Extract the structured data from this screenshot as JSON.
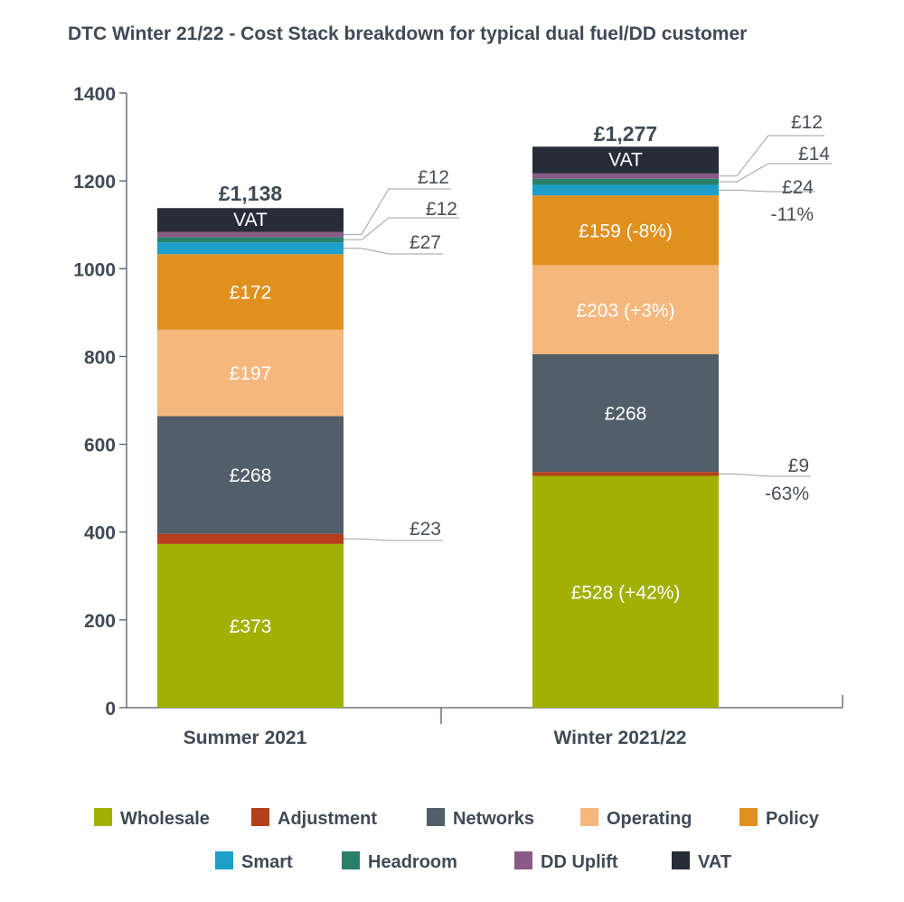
{
  "chart_data": {
    "type": "bar",
    "stacked": true,
    "title": "DTC Winter 21/22 - Cost Stack breakdown for typical dual fuel/DD customer",
    "xlabel": "",
    "ylabel": "",
    "ylim": [
      0,
      1400
    ],
    "yticks": [
      0,
      200,
      400,
      600,
      800,
      1000,
      1200,
      1400
    ],
    "categories": [
      "Summer 2021",
      "Winter 2021/22"
    ],
    "totals": [
      "£1,138",
      "£1,277"
    ],
    "series": [
      {
        "name": "Wholesale",
        "color": "#a0b101",
        "values": [
          373,
          528
        ],
        "labels": [
          "£373",
          "£528 (+42%)"
        ],
        "label_pos": [
          "inside",
          "inside"
        ]
      },
      {
        "name": "Adjustment",
        "color": "#b5401b",
        "values": [
          23,
          9
        ],
        "labels": [
          "£23",
          "£9"
        ],
        "notes": [
          "",
          "-63%"
        ],
        "label_pos": [
          "outside",
          "outside"
        ]
      },
      {
        "name": "Networks",
        "color": "#525e69",
        "values": [
          268,
          268
        ],
        "labels": [
          "£268",
          "£268"
        ],
        "label_pos": [
          "inside",
          "inside"
        ]
      },
      {
        "name": "Operating",
        "color": "#f4b77c",
        "values": [
          197,
          203
        ],
        "labels": [
          "£197",
          "£203 (+3%)"
        ],
        "label_pos": [
          "inside",
          "inside"
        ]
      },
      {
        "name": "Policy",
        "color": "#e0901f",
        "values": [
          172,
          159
        ],
        "labels": [
          "£172",
          "£159 (-8%)"
        ],
        "label_pos": [
          "inside",
          "inside"
        ]
      },
      {
        "name": "Smart",
        "color": "#1d9fc9",
        "values": [
          27,
          24
        ],
        "labels": [
          "£27",
          "£24"
        ],
        "notes": [
          "",
          "-11%"
        ],
        "label_pos": [
          "outside",
          "outside"
        ]
      },
      {
        "name": "Headroom",
        "color": "#2a7f6b",
        "values": [
          12,
          14
        ],
        "labels": [
          "£12",
          "£14"
        ],
        "label_pos": [
          "outside",
          "outside"
        ]
      },
      {
        "name": "DD Uplift",
        "color": "#8a5a86",
        "values": [
          12,
          12
        ],
        "labels": [
          "£12",
          "£12"
        ],
        "label_pos": [
          "outside",
          "outside"
        ]
      },
      {
        "name": "VAT",
        "color": "#262d38",
        "values": [
          54,
          61
        ],
        "labels": [
          "VAT",
          "VAT"
        ],
        "label_pos": [
          "inside",
          "inside"
        ]
      }
    ],
    "legend_position": "bottom"
  }
}
